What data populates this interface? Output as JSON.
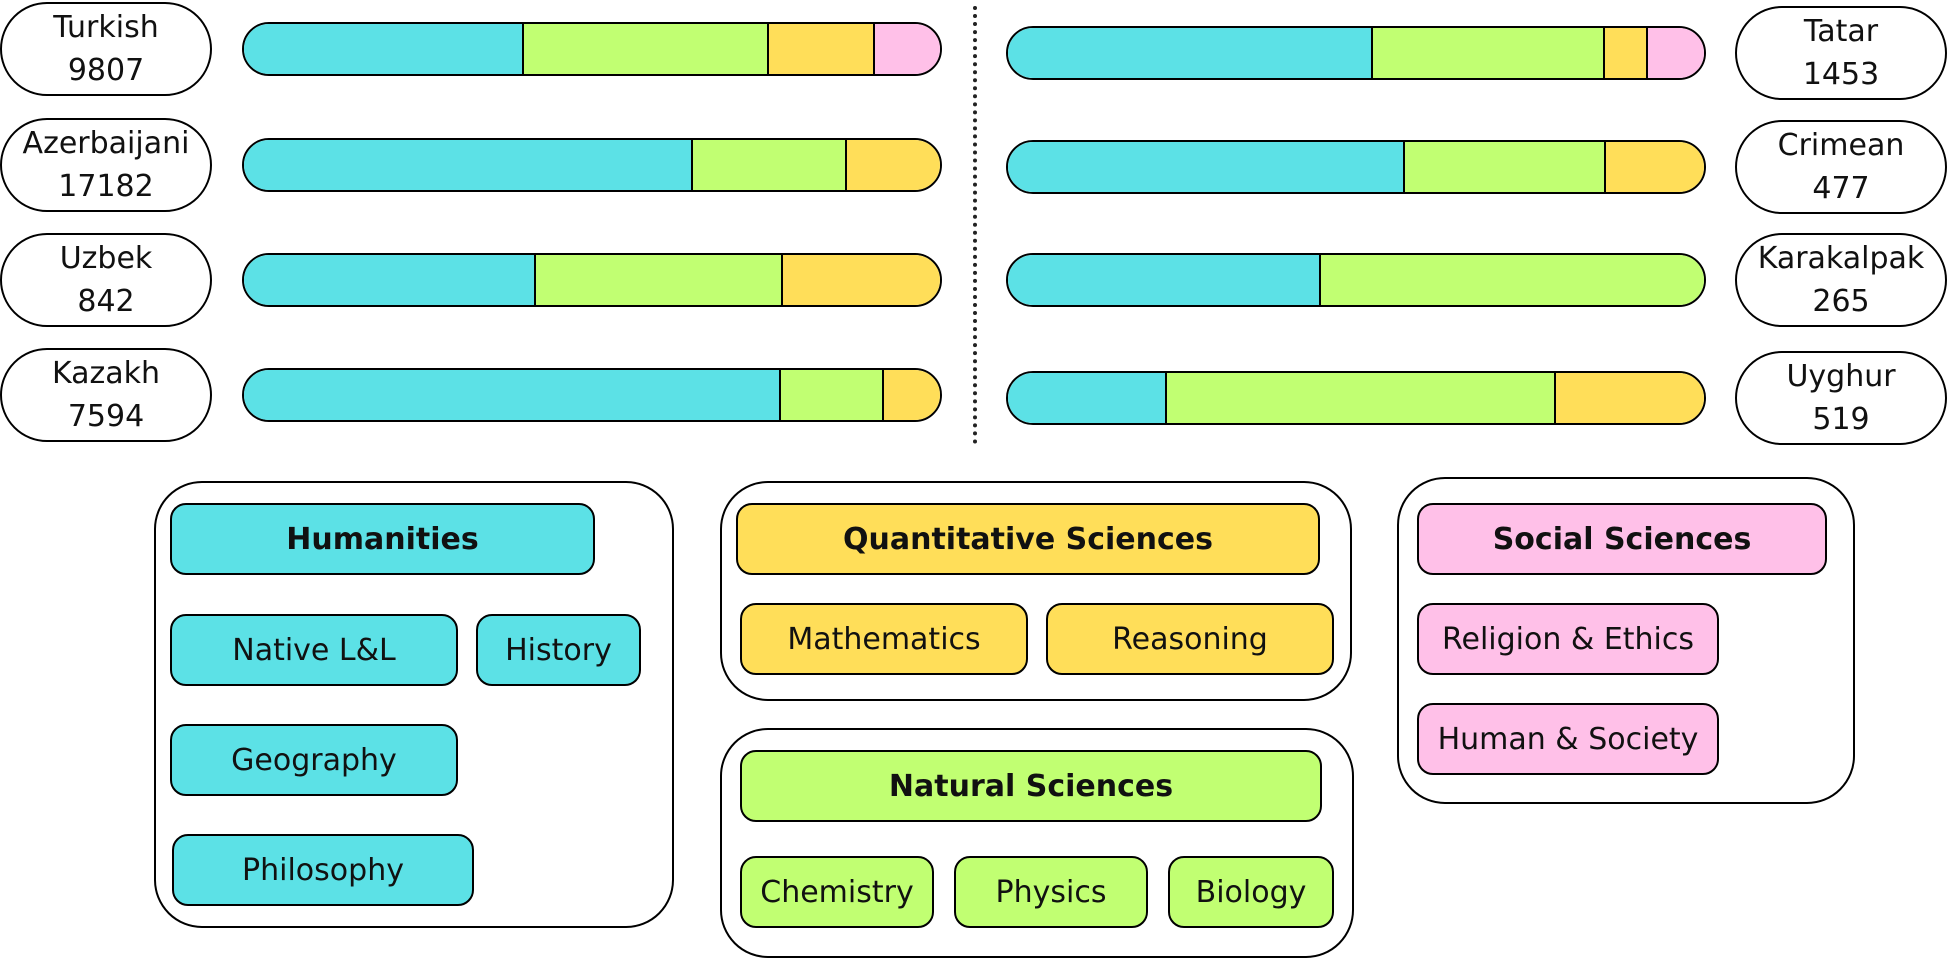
{
  "colors": {
    "humanities": "#5ce1e6",
    "natural": "#c1ff72",
    "quantitative": "#ffde59",
    "social": "#ffc0e8"
  },
  "chart_data": {
    "type": "bar",
    "stacked": true,
    "series_order": [
      "Humanities",
      "Natural Sciences",
      "Quantitative Sciences",
      "Social Sciences"
    ],
    "languages": [
      {
        "name": "Turkish",
        "count": "9807",
        "shares": [
          0.403,
          0.351,
          0.152,
          0.094
        ]
      },
      {
        "name": "Azerbaijani",
        "count": "17182",
        "shares": [
          0.645,
          0.222,
          0.133,
          0
        ]
      },
      {
        "name": "Uzbek",
        "count": "842",
        "shares": [
          0.419,
          0.355,
          0.226,
          0
        ]
      },
      {
        "name": "Kazakh",
        "count": "7594",
        "shares": [
          0.771,
          0.148,
          0.081,
          0
        ]
      },
      {
        "name": "Tatar",
        "count": "1453",
        "shares": [
          0.525,
          0.333,
          0.061,
          0.081
        ]
      },
      {
        "name": "Crimean",
        "count": "477",
        "shares": [
          0.571,
          0.288,
          0.141,
          0
        ]
      },
      {
        "name": "Karakalpak",
        "count": "265",
        "shares": [
          0.449,
          0.551,
          0,
          0
        ]
      },
      {
        "name": "Uyghur",
        "count": "519",
        "shares": [
          0.228,
          0.559,
          0.213,
          0
        ]
      }
    ]
  },
  "legend": {
    "humanities": {
      "title": "Humanities",
      "items": [
        "Native L&L",
        "History",
        "Geography",
        "Philosophy"
      ]
    },
    "quantitative": {
      "title": "Quantitative Sciences",
      "items": [
        "Mathematics",
        "Reasoning"
      ]
    },
    "natural": {
      "title": "Natural Sciences",
      "items": [
        "Chemistry",
        "Physics",
        "Biology"
      ]
    },
    "social": {
      "title": "Social Sciences",
      "items": [
        "Religion & Ethics",
        "Human & Society"
      ]
    }
  }
}
